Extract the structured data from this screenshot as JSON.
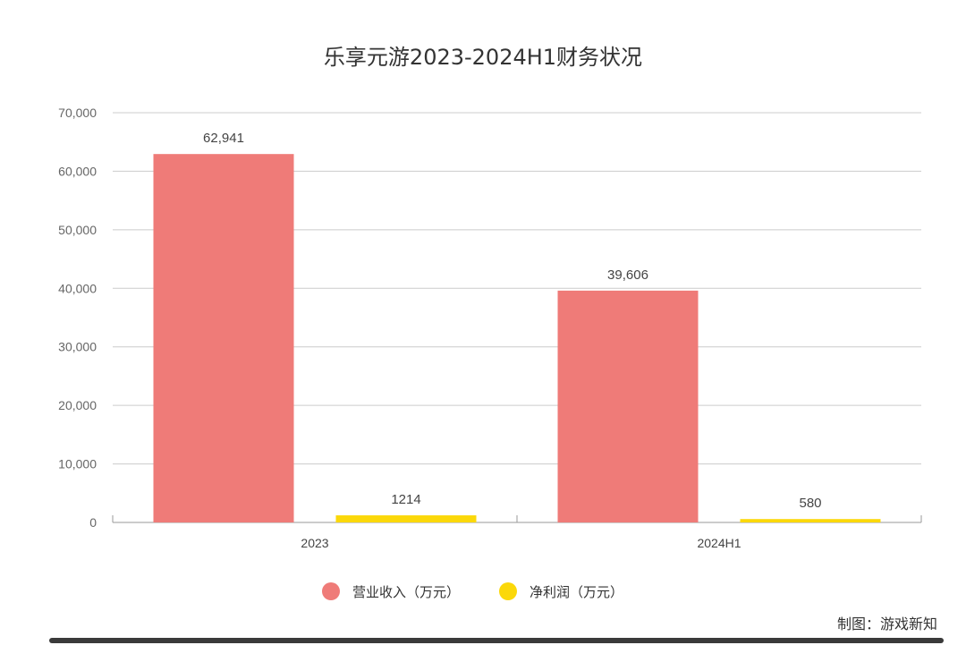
{
  "chart_data": {
    "type": "bar",
    "title": "乐享元游2023-2024H1财务状况",
    "categories": [
      "2023",
      "2024H1"
    ],
    "series": [
      {
        "name": "营业收入（万元）",
        "values": [
          62941,
          39606
        ],
        "labels": [
          "62,941",
          "39,606"
        ],
        "color": "#ef7b78"
      },
      {
        "name": "净利润（万元）",
        "values": [
          1214,
          580
        ],
        "labels": [
          "1214",
          "580"
        ],
        "color": "#fbd80a"
      }
    ],
    "ylim": [
      0,
      70000
    ],
    "yticks": [
      0,
      10000,
      20000,
      30000,
      40000,
      50000,
      60000,
      70000
    ],
    "ytick_labels": [
      "0",
      "10,000",
      "20,000",
      "30,000",
      "40,000",
      "50,000",
      "60,000",
      "70,000"
    ],
    "grid": true,
    "legend": "bottom-center"
  },
  "credit": "制图：游戏新知",
  "colors": {
    "grid": "#cccccc",
    "axis": "#999999",
    "footer_bar": "#3a3a3a"
  }
}
